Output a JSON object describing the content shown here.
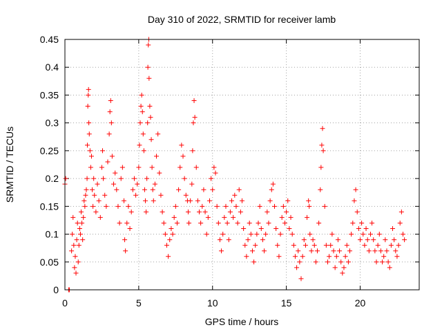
{
  "chart_data": {
    "type": "scatter",
    "title": "Day 310 of 2022, SRMTID for receiver lamb",
    "xlabel": "GPS time / hours",
    "ylabel": "SRMTID / TECUs",
    "xlim": [
      0,
      24
    ],
    "ylim": [
      0,
      0.45
    ],
    "xticks": [
      0,
      5,
      10,
      15,
      20
    ],
    "yticks": [
      0,
      0.05,
      0.1,
      0.15,
      0.2,
      0.25,
      0.3,
      0.35,
      0.4,
      0.45
    ],
    "grid": true,
    "marker": "+",
    "color": "#ff0000",
    "series": [
      {
        "name": "SRMTID",
        "points": [
          [
            0.0,
            0.19
          ],
          [
            0.05,
            0.2
          ],
          [
            0.25,
            0.0
          ],
          [
            0.3,
            0.0
          ],
          [
            0.45,
            0.07
          ],
          [
            0.5,
            0.1
          ],
          [
            0.55,
            0.13
          ],
          [
            0.6,
            0.08
          ],
          [
            0.65,
            0.04
          ],
          [
            0.7,
            0.06
          ],
          [
            0.75,
            0.03
          ],
          [
            0.8,
            0.09
          ],
          [
            0.85,
            0.12
          ],
          [
            0.9,
            0.05
          ],
          [
            0.95,
            0.08
          ],
          [
            1.0,
            0.11
          ],
          [
            1.05,
            0.1
          ],
          [
            1.1,
            0.14
          ],
          [
            1.15,
            0.12
          ],
          [
            1.2,
            0.09
          ],
          [
            1.25,
            0.13
          ],
          [
            1.3,
            0.16
          ],
          [
            1.35,
            0.15
          ],
          [
            1.4,
            0.17
          ],
          [
            1.45,
            0.18
          ],
          [
            1.5,
            0.2
          ],
          [
            1.52,
            0.26
          ],
          [
            1.55,
            0.33
          ],
          [
            1.58,
            0.35
          ],
          [
            1.6,
            0.36
          ],
          [
            1.62,
            0.3
          ],
          [
            1.65,
            0.28
          ],
          [
            1.7,
            0.25
          ],
          [
            1.75,
            0.22
          ],
          [
            1.8,
            0.24
          ],
          [
            1.85,
            0.18
          ],
          [
            1.9,
            0.15
          ],
          [
            1.95,
            0.2
          ],
          [
            2.0,
            0.17
          ],
          [
            2.1,
            0.14
          ],
          [
            2.2,
            0.19
          ],
          [
            2.3,
            0.16
          ],
          [
            2.4,
            0.13
          ],
          [
            2.5,
            0.22
          ],
          [
            2.55,
            0.25
          ],
          [
            2.6,
            0.2
          ],
          [
            2.7,
            0.17
          ],
          [
            2.8,
            0.15
          ],
          [
            2.9,
            0.23
          ],
          [
            3.0,
            0.28
          ],
          [
            3.05,
            0.32
          ],
          [
            3.1,
            0.34
          ],
          [
            3.15,
            0.3
          ],
          [
            3.2,
            0.24
          ],
          [
            3.3,
            0.19
          ],
          [
            3.4,
            0.21
          ],
          [
            3.5,
            0.18
          ],
          [
            3.6,
            0.15
          ],
          [
            3.7,
            0.12
          ],
          [
            3.8,
            0.2
          ],
          [
            3.9,
            0.22
          ],
          [
            4.0,
            0.16
          ],
          [
            4.05,
            0.09
          ],
          [
            4.1,
            0.07
          ],
          [
            4.2,
            0.12
          ],
          [
            4.3,
            0.15
          ],
          [
            4.4,
            0.11
          ],
          [
            4.5,
            0.14
          ],
          [
            4.6,
            0.18
          ],
          [
            4.7,
            0.2
          ],
          [
            4.8,
            0.17
          ],
          [
            4.9,
            0.19
          ],
          [
            5.0,
            0.22
          ],
          [
            5.05,
            0.26
          ],
          [
            5.1,
            0.3
          ],
          [
            5.15,
            0.33
          ],
          [
            5.2,
            0.35
          ],
          [
            5.25,
            0.32
          ],
          [
            5.3,
            0.28
          ],
          [
            5.35,
            0.25
          ],
          [
            5.4,
            0.18
          ],
          [
            5.45,
            0.16
          ],
          [
            5.5,
            0.14
          ],
          [
            5.55,
            0.2
          ],
          [
            5.6,
            0.3
          ],
          [
            5.62,
            0.4
          ],
          [
            5.65,
            0.44
          ],
          [
            5.68,
            0.45
          ],
          [
            5.7,
            0.38
          ],
          [
            5.75,
            0.33
          ],
          [
            5.8,
            0.31
          ],
          [
            5.85,
            0.27
          ],
          [
            5.9,
            0.22
          ],
          [
            5.95,
            0.18
          ],
          [
            6.0,
            0.16
          ],
          [
            6.1,
            0.19
          ],
          [
            6.2,
            0.24
          ],
          [
            6.3,
            0.28
          ],
          [
            6.4,
            0.21
          ],
          [
            6.5,
            0.17
          ],
          [
            6.6,
            0.14
          ],
          [
            6.7,
            0.12
          ],
          [
            6.8,
            0.1
          ],
          [
            6.9,
            0.08
          ],
          [
            7.0,
            0.06
          ],
          [
            7.1,
            0.09
          ],
          [
            7.2,
            0.11
          ],
          [
            7.3,
            0.1
          ],
          [
            7.4,
            0.13
          ],
          [
            7.5,
            0.15
          ],
          [
            7.6,
            0.12
          ],
          [
            7.7,
            0.18
          ],
          [
            7.8,
            0.22
          ],
          [
            7.9,
            0.26
          ],
          [
            8.0,
            0.24
          ],
          [
            8.1,
            0.2
          ],
          [
            8.2,
            0.17
          ],
          [
            8.3,
            0.16
          ],
          [
            8.35,
            0.14
          ],
          [
            8.4,
            0.12
          ],
          [
            8.5,
            0.16
          ],
          [
            8.6,
            0.19
          ],
          [
            8.65,
            0.25
          ],
          [
            8.7,
            0.3
          ],
          [
            8.75,
            0.34
          ],
          [
            8.8,
            0.31
          ],
          [
            8.9,
            0.22
          ],
          [
            9.0,
            0.16
          ],
          [
            9.1,
            0.14
          ],
          [
            9.2,
            0.12
          ],
          [
            9.3,
            0.15
          ],
          [
            9.4,
            0.18
          ],
          [
            9.5,
            0.14
          ],
          [
            9.6,
            0.1
          ],
          [
            9.7,
            0.13
          ],
          [
            9.8,
            0.16
          ],
          [
            9.9,
            0.2
          ],
          [
            10.0,
            0.18
          ],
          [
            10.1,
            0.22
          ],
          [
            10.2,
            0.21
          ],
          [
            10.3,
            0.15
          ],
          [
            10.4,
            0.12
          ],
          [
            10.5,
            0.09
          ],
          [
            10.6,
            0.07
          ],
          [
            10.7,
            0.1
          ],
          [
            10.8,
            0.13
          ],
          [
            10.9,
            0.15
          ],
          [
            11.0,
            0.12
          ],
          [
            11.1,
            0.09
          ],
          [
            11.2,
            0.14
          ],
          [
            11.3,
            0.16
          ],
          [
            11.4,
            0.13
          ],
          [
            11.5,
            0.17
          ],
          [
            11.6,
            0.15
          ],
          [
            11.7,
            0.12
          ],
          [
            11.8,
            0.18
          ],
          [
            11.9,
            0.14
          ],
          [
            12.0,
            0.16
          ],
          [
            12.1,
            0.11
          ],
          [
            12.2,
            0.08
          ],
          [
            12.3,
            0.06
          ],
          [
            12.4,
            0.09
          ],
          [
            12.5,
            0.12
          ],
          [
            12.6,
            0.1
          ],
          [
            12.7,
            0.07
          ],
          [
            12.8,
            0.05
          ],
          [
            12.9,
            0.08
          ],
          [
            13.0,
            0.1
          ],
          [
            13.1,
            0.12
          ],
          [
            13.2,
            0.15
          ],
          [
            13.3,
            0.11
          ],
          [
            13.4,
            0.09
          ],
          [
            13.5,
            0.07
          ],
          [
            13.6,
            0.1
          ],
          [
            13.7,
            0.14
          ],
          [
            13.8,
            0.12
          ],
          [
            13.9,
            0.16
          ],
          [
            14.0,
            0.18
          ],
          [
            14.1,
            0.19
          ],
          [
            14.2,
            0.15
          ],
          [
            14.3,
            0.11
          ],
          [
            14.4,
            0.08
          ],
          [
            14.5,
            0.06
          ],
          [
            14.6,
            0.1
          ],
          [
            14.7,
            0.13
          ],
          [
            14.8,
            0.15
          ],
          [
            14.9,
            0.12
          ],
          [
            15.0,
            0.14
          ],
          [
            15.1,
            0.16
          ],
          [
            15.2,
            0.11
          ],
          [
            15.3,
            0.13
          ],
          [
            15.4,
            0.1
          ],
          [
            15.5,
            0.08
          ],
          [
            15.6,
            0.06
          ],
          [
            15.7,
            0.04
          ],
          [
            15.8,
            0.07
          ],
          [
            15.9,
            0.05
          ],
          [
            16.0,
            0.02
          ],
          [
            16.1,
            0.06
          ],
          [
            16.2,
            0.09
          ],
          [
            16.3,
            0.08
          ],
          [
            16.4,
            0.13
          ],
          [
            16.5,
            0.16
          ],
          [
            16.55,
            0.15
          ],
          [
            16.6,
            0.1
          ],
          [
            16.7,
            0.07
          ],
          [
            16.8,
            0.09
          ],
          [
            16.9,
            0.08
          ],
          [
            17.0,
            0.05
          ],
          [
            17.1,
            0.07
          ],
          [
            17.2,
            0.12
          ],
          [
            17.3,
            0.18
          ],
          [
            17.35,
            0.22
          ],
          [
            17.4,
            0.26
          ],
          [
            17.45,
            0.29
          ],
          [
            17.5,
            0.25
          ],
          [
            17.6,
            0.15
          ],
          [
            17.7,
            0.08
          ],
          [
            17.8,
            0.05
          ],
          [
            17.9,
            0.06
          ],
          [
            18.0,
            0.08
          ],
          [
            18.1,
            0.1
          ],
          [
            18.2,
            0.07
          ],
          [
            18.3,
            0.04
          ],
          [
            18.4,
            0.06
          ],
          [
            18.5,
            0.09
          ],
          [
            18.6,
            0.07
          ],
          [
            18.7,
            0.05
          ],
          [
            18.8,
            0.03
          ],
          [
            18.9,
            0.04
          ],
          [
            19.0,
            0.06
          ],
          [
            19.1,
            0.08
          ],
          [
            19.2,
            0.05
          ],
          [
            19.3,
            0.07
          ],
          [
            19.4,
            0.1
          ],
          [
            19.5,
            0.12
          ],
          [
            19.6,
            0.16
          ],
          [
            19.7,
            0.18
          ],
          [
            19.8,
            0.14
          ],
          [
            19.9,
            0.11
          ],
          [
            20.0,
            0.09
          ],
          [
            20.1,
            0.12
          ],
          [
            20.2,
            0.1
          ],
          [
            20.3,
            0.08
          ],
          [
            20.4,
            0.11
          ],
          [
            20.5,
            0.09
          ],
          [
            20.6,
            0.07
          ],
          [
            20.7,
            0.1
          ],
          [
            20.8,
            0.12
          ],
          [
            20.9,
            0.09
          ],
          [
            21.0,
            0.07
          ],
          [
            21.1,
            0.05
          ],
          [
            21.2,
            0.08
          ],
          [
            21.3,
            0.1
          ],
          [
            21.4,
            0.07
          ],
          [
            21.5,
            0.05
          ],
          [
            21.6,
            0.06
          ],
          [
            21.7,
            0.09
          ],
          [
            21.8,
            0.07
          ],
          [
            21.9,
            0.05
          ],
          [
            22.0,
            0.04
          ],
          [
            22.1,
            0.08
          ],
          [
            22.2,
            0.11
          ],
          [
            22.3,
            0.09
          ],
          [
            22.4,
            0.07
          ],
          [
            22.5,
            0.06
          ],
          [
            22.6,
            0.08
          ],
          [
            22.7,
            0.12
          ],
          [
            22.8,
            0.14
          ],
          [
            22.9,
            0.1
          ],
          [
            23.0,
            0.09
          ]
        ]
      }
    ]
  }
}
